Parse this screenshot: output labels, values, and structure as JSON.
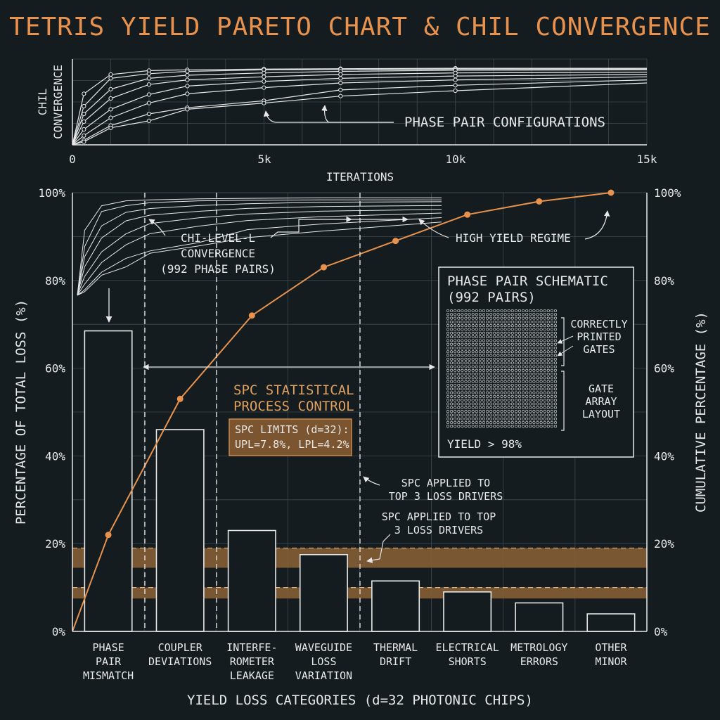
{
  "title": "TETRIS YIELD PARETO CHART & CHIL CONVERGENCE",
  "colors": {
    "background": "#141c1f",
    "accent": "#e8924e",
    "line": "#e8e8e8",
    "band": "#8a6236",
    "grid": "#3c4a50"
  },
  "chart_data": [
    {
      "type": "line",
      "ylabel": [
        "CHIL",
        "CONVERGENCE"
      ],
      "xlabel": "ITERATIONS",
      "x_ticks": [
        "0",
        "5k",
        "10k",
        "15k"
      ],
      "xlim": [
        0,
        15000
      ],
      "ylim": [
        0,
        1
      ],
      "grid": true,
      "annotation": "PHASE PAIR CONFIGURATIONS",
      "x": [
        0,
        300,
        1000,
        2000,
        3000,
        5000,
        7000,
        10000,
        15000
      ],
      "series": [
        {
          "values": [
            0.0,
            0.66,
            0.91,
            0.96,
            0.97,
            0.98,
            0.985,
            0.99,
            0.99
          ]
        },
        {
          "values": [
            0.0,
            0.5,
            0.86,
            0.92,
            0.95,
            0.97,
            0.975,
            0.98,
            0.98
          ]
        },
        {
          "values": [
            0.0,
            0.4,
            0.72,
            0.86,
            0.9,
            0.93,
            0.95,
            0.965,
            0.97
          ]
        },
        {
          "values": [
            0.0,
            0.3,
            0.6,
            0.78,
            0.84,
            0.88,
            0.91,
            0.93,
            0.94
          ]
        },
        {
          "values": [
            0.0,
            0.2,
            0.46,
            0.65,
            0.76,
            0.82,
            0.86,
            0.89,
            0.91
          ]
        },
        {
          "values": [
            0.0,
            0.12,
            0.35,
            0.54,
            0.66,
            0.74,
            0.8,
            0.84,
            0.88
          ]
        },
        {
          "values": [
            0.0,
            0.06,
            0.25,
            0.4,
            0.48,
            0.57,
            0.71,
            0.77,
            0.84
          ]
        },
        {
          "values": [
            0.0,
            0.04,
            0.22,
            0.31,
            0.46,
            0.54,
            0.63,
            0.7,
            0.8
          ]
        }
      ]
    },
    {
      "type": "bar",
      "xlabel": "YIELD LOSS CATEGORIES (d=32 PHOTONIC CHIPS)",
      "ylabel": "PERCENTAGE OF TOTAL LOSS (%)",
      "y2label": "CUMULATIVE PERCENTAGE (%)",
      "ylim": [
        0,
        100
      ],
      "y_ticks": [
        "0%",
        "20%",
        "40%",
        "60%",
        "80%",
        "100%"
      ],
      "categories": [
        [
          "PHASE",
          "PAIR",
          "MISMATCH"
        ],
        [
          "COUPLER",
          "DEVIATIONS"
        ],
        [
          "INTERFE-",
          "ROMETER",
          "LEAKAGE"
        ],
        [
          "WAVEGUIDE",
          "LOSS",
          "VARIATION"
        ],
        [
          "THERMAL",
          "DRIFT"
        ],
        [
          "ELECTRICAL",
          "SHORTS"
        ],
        [
          "METROLOGY",
          "ERRORS"
        ],
        [
          "OTHER",
          "MINOR"
        ]
      ],
      "values": [
        68.5,
        46,
        23,
        17.5,
        11.5,
        9,
        6.5,
        4
      ],
      "cumulative": {
        "x": [
          0,
          0.5,
          1.5,
          2.5,
          3.5,
          4.5,
          5.5,
          6.5,
          7.5
        ],
        "values": [
          0,
          22,
          53,
          72,
          83,
          89,
          95,
          98,
          100
        ]
      },
      "spc_bands": [
        [
          14.5,
          19
        ],
        [
          7.5,
          10
        ]
      ],
      "spc_dashed_lines": [
        19,
        10
      ],
      "grid": true
    }
  ],
  "annotations": {
    "chi_level": [
      "CHI-LEVEL-L",
      "CONVERGENCE",
      "(992 PHASE PAIRS)"
    ],
    "high_yield": "HIGH YIELD REGIME",
    "spc_heading": [
      "SPC STATISTICAL",
      "PROCESS CONTROL"
    ],
    "spc_limits": [
      "SPC LIMITS (d=32):",
      "UPL=7.8%, LPL=4.2%"
    ],
    "spc_applied_1": [
      "SPC APPLIED TO",
      "TOP 3 LOSS DRIVERS"
    ],
    "spc_applied_2": [
      "SPC APPLIED TO TOP",
      "3 LOSS DRIVERS"
    ]
  },
  "schematic": {
    "title": [
      "PHASE PAIR SCHEMATIC",
      "(992 PAIRS)"
    ],
    "label_top": [
      "CORRECTLY",
      "PRINTED",
      "GATES"
    ],
    "label_bottom": [
      "GATE",
      "ARRAY",
      "LAYOUT"
    ],
    "yield": "YIELD > 98%",
    "grid_cols": 31,
    "grid_rows": 32
  }
}
